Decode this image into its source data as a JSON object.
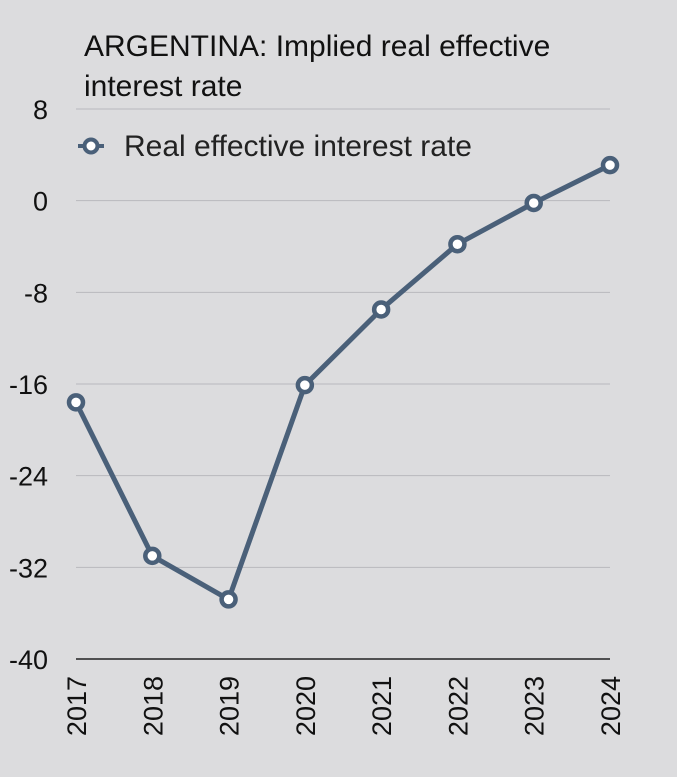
{
  "chart_data": {
    "type": "line",
    "title_lines": [
      "ARGENTINA: Implied real effective",
      "interest rate"
    ],
    "x": [
      "2017",
      "2018",
      "2019",
      "2020",
      "2021",
      "2022",
      "2023",
      "2024"
    ],
    "series": [
      {
        "name": "Real effective interest rate",
        "values": [
          -17.6,
          -31,
          -34.8,
          -16.1,
          -9.5,
          -3.8,
          -0.2,
          3.1
        ],
        "color": "#4a6079"
      }
    ],
    "ylim": [
      -40,
      8
    ],
    "yticks": [
      8,
      0,
      -8,
      -16,
      -24,
      -32,
      -40
    ],
    "grid": true,
    "legend_position": "top-left"
  }
}
